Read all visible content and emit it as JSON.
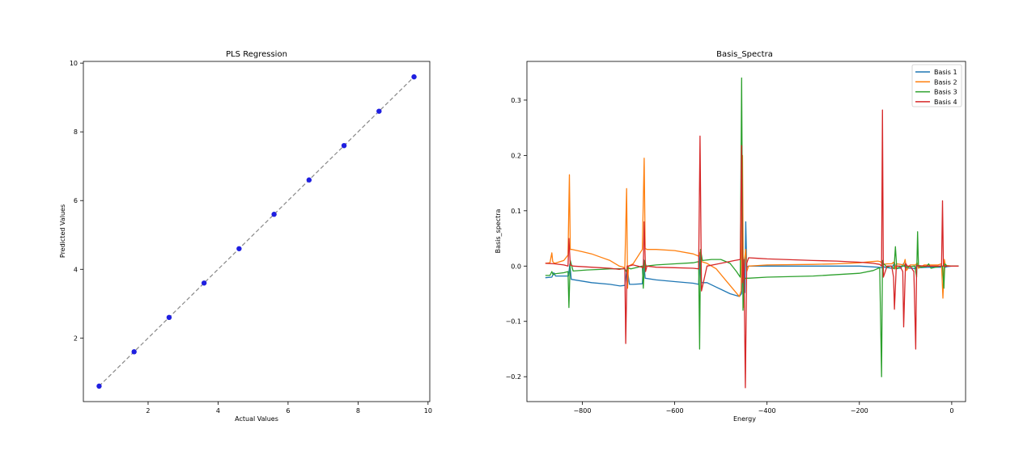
{
  "chart_data": [
    {
      "type": "scatter",
      "title": "PLS Regression",
      "xlabel": "Actual Values",
      "ylabel": "Predicted Values",
      "xlim": [
        0.15,
        10.05
      ],
      "ylim": [
        0.15,
        10.05
      ],
      "xticks": [
        "2",
        "4",
        "6",
        "8",
        "10"
      ],
      "yticks": [
        "2",
        "4",
        "6",
        "8",
        "10"
      ],
      "xtick_values": [
        2,
        4,
        6,
        8,
        10
      ],
      "ytick_values": [
        2,
        4,
        6,
        8,
        10
      ],
      "grid": false,
      "series": [
        {
          "kind": "scatter",
          "color": "#1f1fe0",
          "x": [
            0.6,
            1.6,
            2.6,
            3.6,
            4.6,
            5.6,
            6.6,
            7.6,
            8.6,
            9.6
          ],
          "y": [
            0.6,
            1.6,
            2.6,
            3.6,
            4.6,
            5.6,
            6.6,
            7.6,
            8.6,
            9.6
          ]
        },
        {
          "kind": "reference-line",
          "style": "dashed",
          "color": "#888888",
          "x": [
            0.6,
            9.6
          ],
          "y": [
            0.6,
            9.6
          ]
        }
      ]
    },
    {
      "type": "line",
      "title": "Basis_Spectra",
      "xlabel": "Energy",
      "ylabel": "Basis_spectra",
      "xlim": [
        -920,
        30
      ],
      "ylim": [
        -0.245,
        0.37
      ],
      "xticks": [
        "−800",
        "−600",
        "−400",
        "−200",
        "0"
      ],
      "xtick_values": [
        -800,
        -600,
        -400,
        -200,
        0
      ],
      "yticks": [
        "−0.2",
        "−0.1",
        "0.0",
        "0.1",
        "0.2",
        "0.3"
      ],
      "ytick_values": [
        -0.2,
        -0.1,
        0.0,
        0.1,
        0.2,
        0.3
      ],
      "grid": false,
      "legend": "top-right",
      "series": [
        {
          "name": "Basis 1",
          "color": "#1f77b4",
          "x": [
            -880,
            -866,
            -862,
            -858,
            -830,
            -827,
            -824,
            -780,
            -740,
            -718,
            -708,
            -703,
            -698,
            -690,
            -670,
            -667,
            -664,
            -640,
            -600,
            -560,
            -548,
            -545,
            -542,
            -530,
            -510,
            -480,
            -460,
            -455,
            -452,
            -448,
            -446,
            -444,
            -440,
            -420,
            -400,
            -300,
            -200,
            -160,
            -150,
            -148,
            -146,
            -130,
            -124,
            -122,
            -110,
            -104,
            -100,
            -85,
            -78,
            -76,
            -70,
            -50,
            -40,
            -20,
            -16,
            -14,
            -10,
            0,
            15
          ],
          "y": [
            -0.021,
            -0.02,
            -0.012,
            -0.018,
            -0.018,
            0.004,
            -0.024,
            -0.03,
            -0.033,
            -0.036,
            -0.035,
            -0.003,
            -0.033,
            -0.033,
            -0.032,
            0.012,
            -0.022,
            -0.025,
            -0.028,
            -0.031,
            -0.033,
            0.02,
            -0.03,
            -0.03,
            -0.038,
            -0.05,
            -0.055,
            -0.05,
            0.016,
            -0.048,
            0.08,
            -0.002,
            0.0,
            0.0,
            0.0,
            0.0,
            0.0,
            -0.002,
            -0.003,
            0.0,
            -0.002,
            -0.004,
            0.006,
            -0.004,
            -0.004,
            0.005,
            -0.004,
            -0.004,
            -0.005,
            0.004,
            -0.003,
            -0.002,
            -0.002,
            -0.002,
            0.003,
            -0.002,
            -0.001,
            0.0,
            0.0
          ]
        },
        {
          "name": "Basis 2",
          "color": "#ff7f0e",
          "x": [
            -880,
            -870,
            -866,
            -864,
            -860,
            -840,
            -831,
            -828,
            -826,
            -822,
            -800,
            -780,
            -760,
            -740,
            -720,
            -708,
            -704,
            -702,
            -700,
            -690,
            -670,
            -666,
            -664,
            -660,
            -640,
            -600,
            -560,
            -548,
            -545,
            -542,
            -530,
            -510,
            -490,
            -470,
            -460,
            -456,
            -453,
            -451,
            -449,
            -446,
            -444,
            -440,
            -420,
            -400,
            -300,
            -250,
            -200,
            -175,
            -160,
            -155,
            -150,
            -147,
            -140,
            -130,
            -126,
            -123,
            -120,
            -110,
            -104,
            -101,
            -98,
            -90,
            -78,
            -75,
            -72,
            -60,
            -45,
            -30,
            -22,
            -19,
            -16,
            -14,
            -10,
            0,
            15
          ],
          "y": [
            0.005,
            0.006,
            0.024,
            0.008,
            0.005,
            0.01,
            0.02,
            0.165,
            0.03,
            0.03,
            0.026,
            0.022,
            0.016,
            0.01,
            0.0,
            -0.003,
            0.14,
            -0.04,
            0.0,
            0.004,
            0.03,
            0.195,
            0.032,
            0.03,
            0.03,
            0.028,
            0.022,
            0.018,
            0.025,
            0.008,
            0.005,
            -0.005,
            -0.025,
            -0.045,
            -0.055,
            -0.045,
            0.2,
            -0.075,
            0.01,
            0.03,
            -0.01,
            0.0,
            0.001,
            0.002,
            0.003,
            0.004,
            0.006,
            0.008,
            0.009,
            0.008,
            0.005,
            0.003,
            0.004,
            0.004,
            0.007,
            -0.005,
            0.004,
            0.003,
            0.002,
            0.012,
            -0.008,
            0.002,
            0.002,
            0.006,
            -0.004,
            0.002,
            0.002,
            0.002,
            0.004,
            -0.058,
            0.012,
            0.002,
            0.001,
            0.0,
            0.0
          ]
        },
        {
          "name": "Basis 3",
          "color": "#2ca02c",
          "x": [
            -880,
            -870,
            -866,
            -863,
            -860,
            -840,
            -831,
            -829,
            -826,
            -820,
            -790,
            -760,
            -740,
            -720,
            -708,
            -705,
            -702,
            -695,
            -680,
            -670,
            -668,
            -665,
            -662,
            -640,
            -600,
            -560,
            -548,
            -546,
            -544,
            -540,
            -520,
            -500,
            -480,
            -466,
            -458,
            -455,
            -452,
            -450,
            -446,
            -440,
            -400,
            -300,
            -200,
            -170,
            -156,
            -152,
            -150,
            -148,
            -140,
            -132,
            -125,
            -122,
            -119,
            -110,
            -102,
            -100,
            -98,
            -90,
            -80,
            -76,
            -74,
            -72,
            -65,
            -55,
            -50,
            -45,
            -35,
            -25,
            -20,
            -17,
            -15,
            -10,
            0,
            15
          ],
          "y": [
            -0.017,
            -0.017,
            -0.01,
            -0.016,
            -0.014,
            -0.012,
            -0.01,
            -0.075,
            0.01,
            -0.009,
            -0.007,
            -0.006,
            -0.005,
            -0.005,
            -0.005,
            -0.01,
            -0.003,
            -0.005,
            -0.002,
            0.0,
            -0.04,
            0.01,
            0.0,
            0.002,
            0.004,
            0.006,
            0.008,
            -0.15,
            0.03,
            0.01,
            0.012,
            0.012,
            0.005,
            -0.01,
            -0.02,
            0.34,
            -0.08,
            -0.025,
            -0.022,
            -0.022,
            -0.02,
            -0.018,
            -0.013,
            -0.008,
            -0.003,
            -0.2,
            0.01,
            0.005,
            -0.002,
            0.0,
            -0.005,
            0.035,
            -0.005,
            0.0,
            0.0,
            0.003,
            -0.002,
            -0.001,
            0.0,
            -0.02,
            0.062,
            0.0,
            -0.002,
            -0.001,
            0.004,
            -0.004,
            -0.002,
            0.0,
            0.0,
            -0.04,
            0.004,
            0.0,
            0.0,
            0.0
          ]
        },
        {
          "name": "Basis 4",
          "color": "#d62728",
          "x": [
            -880,
            -860,
            -840,
            -831,
            -829,
            -826,
            -820,
            -780,
            -740,
            -720,
            -708,
            -706,
            -703,
            -700,
            -690,
            -680,
            -668,
            -666,
            -663,
            -660,
            -640,
            -600,
            -560,
            -548,
            -545,
            -542,
            -530,
            -500,
            -470,
            -458,
            -455,
            -453,
            -450,
            -447,
            -444,
            -440,
            -420,
            -400,
            -300,
            -250,
            -200,
            -170,
            -156,
            -152,
            -150,
            -148,
            -140,
            -130,
            -126,
            -124,
            -120,
            -112,
            -106,
            -104,
            -100,
            -96,
            -90,
            -82,
            -78,
            -76,
            -72,
            -60,
            -40,
            -30,
            -22,
            -20,
            -18,
            -14,
            -10,
            0,
            15
          ],
          "y": [
            0.005,
            0.004,
            0.002,
            0.0,
            0.05,
            0.002,
            0.0,
            -0.002,
            -0.004,
            -0.006,
            -0.004,
            -0.14,
            0.0,
            0.0,
            0.002,
            0.0,
            -0.003,
            0.08,
            -0.01,
            0.0,
            -0.002,
            -0.003,
            -0.004,
            -0.005,
            0.235,
            -0.045,
            0.0,
            0.005,
            0.01,
            0.012,
            0.218,
            -0.03,
            0.012,
            -0.22,
            0.005,
            0.015,
            0.014,
            0.013,
            0.01,
            0.009,
            0.007,
            0.005,
            0.003,
            0.0,
            0.282,
            -0.02,
            0.0,
            0.0,
            -0.02,
            -0.078,
            0.0,
            0.0,
            -0.01,
            -0.11,
            0.005,
            0.0,
            0.0,
            -0.01,
            -0.15,
            0.0,
            0.001,
            0.0,
            0.0,
            0.0,
            0.0,
            0.118,
            0.0,
            0.0,
            0.0,
            0.0,
            0.0
          ]
        }
      ]
    }
  ]
}
